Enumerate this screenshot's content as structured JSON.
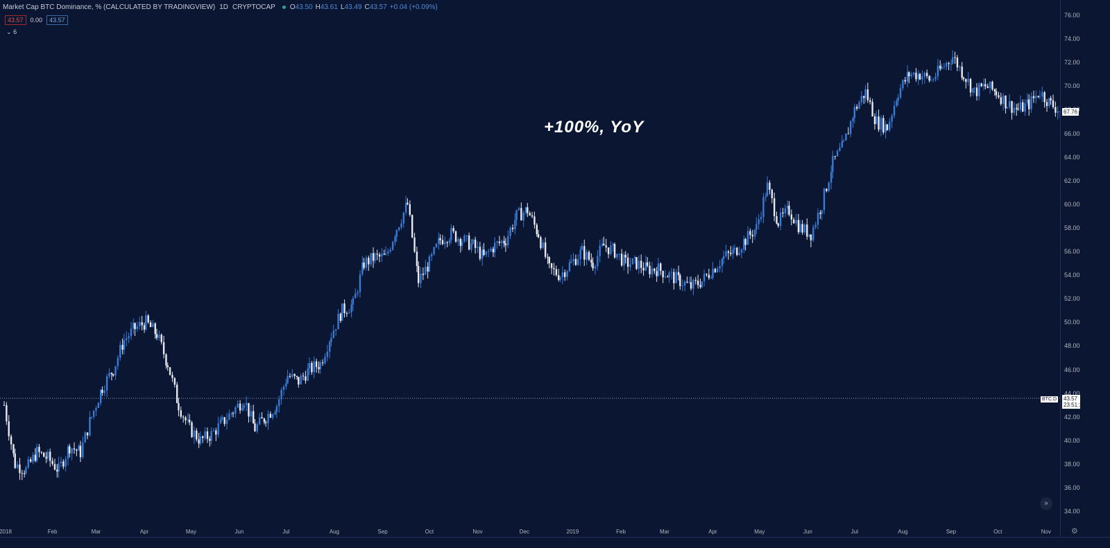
{
  "header": {
    "title": "Market Cap BTC Dominance, % (CALCULATED BY TRADINGVIEW)",
    "interval": "1D",
    "exchange": "CRYPTOCAP",
    "ohlc": {
      "o_label": "O",
      "o": "43.50",
      "h_label": "H",
      "h": "43.61",
      "l_label": "L",
      "l": "43.49",
      "c_label": "C",
      "c": "43.57",
      "change": "+0.04 (+0.09%)"
    },
    "bid": "43.57",
    "spread": "0.00",
    "ask": "43.57",
    "indicator_toggle": "6"
  },
  "annotation": "+100%, YoY",
  "axis": {
    "y_ticks": [
      "76.00",
      "74.00",
      "72.00",
      "70.00",
      "68.00",
      "66.00",
      "64.00",
      "62.00",
      "60.00",
      "58.00",
      "56.00",
      "54.00",
      "52.00",
      "50.00",
      "48.00",
      "46.00",
      "44.00",
      "42.00",
      "40.00",
      "38.00",
      "36.00",
      "34.00"
    ],
    "x_ticks": [
      "2018",
      "Feb",
      "Mar",
      "Apr",
      "May",
      "Jun",
      "Jul",
      "Aug",
      "Sep",
      "Oct",
      "Nov",
      "Dec",
      "2019",
      "Feb",
      "Mar",
      "Apr",
      "May",
      "Jun",
      "Jul",
      "Aug",
      "Sep",
      "Oct",
      "Nov"
    ]
  },
  "price_labels": {
    "last_close": "67.76",
    "current": "43.57",
    "countdown": "23:51:19",
    "symbol": "BTC.D"
  },
  "chart_data": {
    "type": "line",
    "title": "Market Cap BTC Dominance, % (CALCULATED BY TRADINGVIEW)",
    "xlabel": "",
    "ylabel": "",
    "ylim": [
      33,
      77
    ],
    "x": [
      "2018-01-01",
      "2018-01-08",
      "2018-01-15",
      "2018-01-22",
      "2018-01-29",
      "2018-02-05",
      "2018-02-12",
      "2018-02-19",
      "2018-02-26",
      "2018-03-05",
      "2018-03-12",
      "2018-03-19",
      "2018-03-26",
      "2018-04-02",
      "2018-04-09",
      "2018-04-16",
      "2018-04-23",
      "2018-04-30",
      "2018-05-07",
      "2018-05-14",
      "2018-05-21",
      "2018-05-28",
      "2018-06-04",
      "2018-06-11",
      "2018-06-18",
      "2018-06-25",
      "2018-07-02",
      "2018-07-09",
      "2018-07-16",
      "2018-07-23",
      "2018-07-30",
      "2018-08-06",
      "2018-08-13",
      "2018-08-20",
      "2018-08-27",
      "2018-09-03",
      "2018-09-10",
      "2018-09-17",
      "2018-09-24",
      "2018-10-01",
      "2018-10-08",
      "2018-10-15",
      "2018-10-22",
      "2018-10-29",
      "2018-11-05",
      "2018-11-12",
      "2018-11-19",
      "2018-11-26",
      "2018-12-03",
      "2018-12-10",
      "2018-12-17",
      "2018-12-24",
      "2018-12-31",
      "2019-01-07",
      "2019-01-14",
      "2019-01-21",
      "2019-01-28",
      "2019-02-04",
      "2019-02-11",
      "2019-02-18",
      "2019-02-25",
      "2019-03-04",
      "2019-03-11",
      "2019-03-18",
      "2019-03-25",
      "2019-04-01",
      "2019-04-08",
      "2019-04-15",
      "2019-04-22",
      "2019-04-29",
      "2019-05-06",
      "2019-05-13",
      "2019-05-20",
      "2019-05-27",
      "2019-06-03",
      "2019-06-10",
      "2019-06-17",
      "2019-06-24",
      "2019-07-01",
      "2019-07-08",
      "2019-07-15",
      "2019-07-22",
      "2019-07-29",
      "2019-08-05",
      "2019-08-12",
      "2019-08-19",
      "2019-08-26",
      "2019-09-02",
      "2019-09-09",
      "2019-09-16",
      "2019-09-23",
      "2019-09-30",
      "2019-10-07",
      "2019-10-14",
      "2019-10-21",
      "2019-10-28",
      "2019-11-04",
      "2019-11-11"
    ],
    "series": [
      {
        "values": [
          43.0,
          38.0,
          37.5,
          39.0,
          38.5,
          37.5,
          39.5,
          39.0,
          42.0,
          44.5,
          46.0,
          48.5,
          49.5,
          50.0,
          49.0,
          46.5,
          43.0,
          41.0,
          40.0,
          40.5,
          41.5,
          42.5,
          43.5,
          41.0,
          42.0,
          43.0,
          45.5,
          45.0,
          46.0,
          46.5,
          49.0,
          51.0,
          51.5,
          55.0,
          55.5,
          55.5,
          58.0,
          60.0,
          53.5,
          55.0,
          57.0,
          57.5,
          57.0,
          56.5,
          55.5,
          56.5,
          57.0,
          59.0,
          59.5,
          57.5,
          54.5,
          54.0,
          55.0,
          56.0,
          55.0,
          56.5,
          56.0,
          55.0,
          55.0,
          54.5,
          54.5,
          54.0,
          53.5,
          53.0,
          53.5,
          54.5,
          55.5,
          56.0,
          57.0,
          58.0,
          61.5,
          58.5,
          59.5,
          58.0,
          57.5,
          60.0,
          63.5,
          65.0,
          68.0,
          69.5,
          67.0,
          66.5,
          69.5,
          71.0,
          71.0,
          70.5,
          71.5,
          72.5,
          71.0,
          69.5,
          70.0,
          69.5,
          68.5,
          68.0,
          68.5,
          69.5,
          68.5,
          67.8
        ]
      }
    ],
    "grid": false,
    "legend": "none"
  }
}
